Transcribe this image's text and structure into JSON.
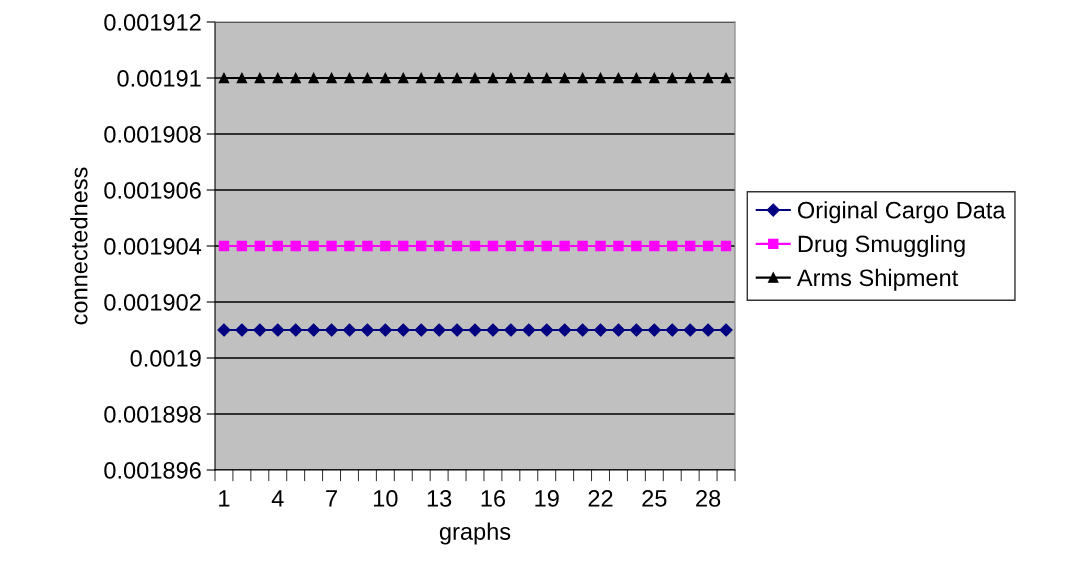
{
  "chart_data": {
    "type": "line",
    "xlabel": "graphs",
    "ylabel": "connectedness",
    "categories": [
      "1",
      null,
      null,
      "4",
      null,
      null,
      "7",
      null,
      null,
      "10",
      null,
      null,
      "13",
      null,
      null,
      "16",
      null,
      null,
      "19",
      null,
      null,
      "22",
      null,
      null,
      "25",
      null,
      null,
      "28",
      null
    ],
    "series": [
      {
        "name": "Original Cargo Data",
        "color": "#000080",
        "marker": "diamond",
        "values": [
          0.001901,
          0.001901,
          0.001901,
          0.001901,
          0.001901,
          0.001901,
          0.001901,
          0.001901,
          0.001901,
          0.001901,
          0.001901,
          0.001901,
          0.001901,
          0.001901,
          0.001901,
          0.001901,
          0.001901,
          0.001901,
          0.001901,
          0.001901,
          0.001901,
          0.001901,
          0.001901,
          0.001901,
          0.001901,
          0.001901,
          0.001901,
          0.001901,
          0.001901
        ]
      },
      {
        "name": "Drug Smuggling",
        "color": "#ff00ff",
        "marker": "square",
        "values": [
          0.001904,
          0.001904,
          0.001904,
          0.001904,
          0.001904,
          0.001904,
          0.001904,
          0.001904,
          0.001904,
          0.001904,
          0.001904,
          0.001904,
          0.001904,
          0.001904,
          0.001904,
          0.001904,
          0.001904,
          0.001904,
          0.001904,
          0.001904,
          0.001904,
          0.001904,
          0.001904,
          0.001904,
          0.001904,
          0.001904,
          0.001904,
          0.001904,
          0.001904
        ]
      },
      {
        "name": "Arms Shipment",
        "color": "#000000",
        "marker": "triangle",
        "values": [
          0.00191,
          0.00191,
          0.00191,
          0.00191,
          0.00191,
          0.00191,
          0.00191,
          0.00191,
          0.00191,
          0.00191,
          0.00191,
          0.00191,
          0.00191,
          0.00191,
          0.00191,
          0.00191,
          0.00191,
          0.00191,
          0.00191,
          0.00191,
          0.00191,
          0.00191,
          0.00191,
          0.00191,
          0.00191,
          0.00191,
          0.00191,
          0.00191,
          0.00191
        ]
      }
    ],
    "ylim": [
      0.001896,
      0.001912
    ],
    "yticks": [
      0.001896,
      0.001898,
      0.0019,
      0.001902,
      0.001904,
      0.001906,
      0.001908,
      0.00191,
      0.001912
    ],
    "grid": "y",
    "legend": "right",
    "line_style": "solid"
  }
}
